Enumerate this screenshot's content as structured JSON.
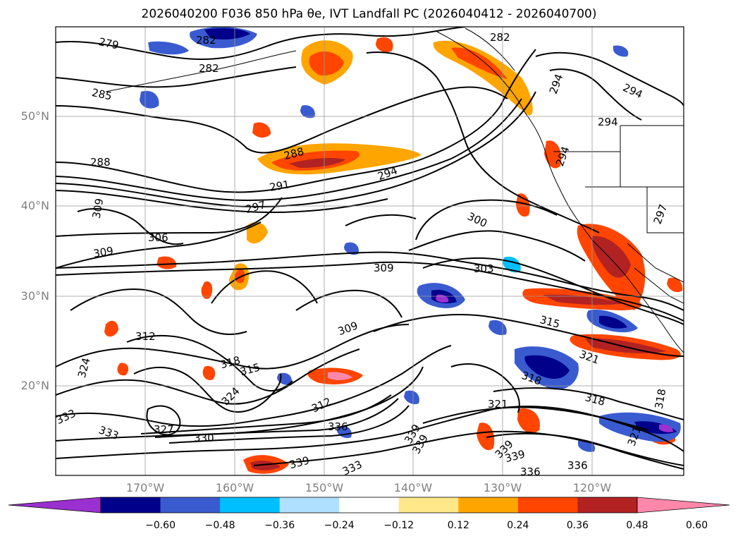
{
  "title": "2026040200 F036 850 hPa θe, IVT Landfall PC (2026040412 - 2026040700)",
  "lat_labels": [
    "50°N",
    "40°N",
    "30°N",
    "20°N"
  ],
  "lon_labels": [
    "170°W",
    "160°W",
    "150°W",
    "140°W",
    "130°W",
    "120°W"
  ],
  "colorbar": {
    "ticks": [
      "−0.60",
      "−0.48",
      "−0.36",
      "−0.24",
      "−0.12",
      "0.12",
      "0.24",
      "0.36",
      "0.48",
      "0.60"
    ],
    "colors": [
      "#9b30d0",
      "#00008b",
      "#3a5bd0",
      "#00bfff",
      "#b0e0ff",
      "#ffffff",
      "#ffe88a",
      "#ffa500",
      "#ff4500",
      "#b22222",
      "#ff88aa"
    ]
  },
  "contour_labels": [
    "279",
    "282",
    "282",
    "282",
    "285",
    "288",
    "288",
    "291",
    "294",
    "294",
    "294",
    "294",
    "294",
    "297",
    "297",
    "300",
    "303",
    "306",
    "309",
    "309",
    "309",
    "309",
    "312",
    "312",
    "315",
    "315",
    "318",
    "318",
    "318",
    "318",
    "321",
    "321",
    "321",
    "324",
    "324",
    "327",
    "330",
    "333",
    "333",
    "333",
    "336",
    "336",
    "336",
    "339",
    "339",
    "339"
  ],
  "map_colors": {
    "contour": "#000000",
    "grid": "#999999",
    "coast": "#000000"
  }
}
